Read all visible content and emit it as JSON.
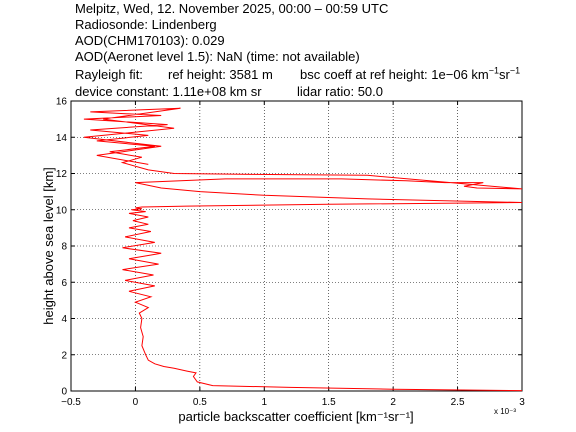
{
  "header": {
    "line1": "Melpitz, Wed, 12. November 2025, 00:00 – 00:59 UTC",
    "line2": "Radiosonde: Lindenberg",
    "line3": "AOD(CHM170103): 0.029",
    "line4": "AOD(Aeronet level 1.5): NaN   (time: not available)",
    "rayleigh_label": "Rayleigh fit:",
    "ref_height": "ref height: 3581 m",
    "bsc_coeff_prefix": "bsc coeff at ref height: 1e−06 km",
    "device_constant": "device constant: 1.11e+08 km sr",
    "lidar_ratio": "lidar ratio: 50.0"
  },
  "chart_data": {
    "type": "line",
    "xlabel": "particle backscatter coefficient [km⁻¹sr⁻¹]",
    "ylabel": "height above sea level [km]",
    "x_exponent_label": "x 10⁻³",
    "xlim": [
      -0.5,
      3
    ],
    "ylim": [
      0,
      16
    ],
    "x_ticks": [
      "−0.5",
      "0",
      "0.5",
      "1",
      "1.5",
      "2",
      "2.5",
      "3"
    ],
    "y_ticks": [
      "0",
      "2",
      "4",
      "6",
      "8",
      "10",
      "12",
      "14",
      "16"
    ],
    "grid": true,
    "line_color": "#ff0000",
    "series": [
      {
        "x": [
          3.0,
          2.0,
          1.2,
          0.6,
          0.48,
          0.45,
          0.47,
          0.4,
          0.3,
          0.22,
          0.15,
          0.1,
          0.08,
          0.05,
          0.06,
          0.04,
          0.05,
          0.03,
          0.1,
          0.0,
          0.12,
          -0.05,
          0.15,
          -0.08,
          0.14,
          -0.1,
          0.18,
          -0.05,
          0.2,
          -0.1,
          0.15,
          -0.08,
          0.12,
          -0.05,
          0.1,
          -0.02,
          0.1,
          -0.05,
          0.08,
          -0.03,
          0.05,
          0.0,
          0.05,
          0.4,
          1.5,
          3.0,
          1.8,
          1.0,
          0.5,
          0.2,
          0.0,
          0.7,
          1.6,
          2.1,
          2.4,
          2.7,
          2.55,
          2.65,
          3.0,
          1.8,
          0.9,
          0.3,
          0.1,
          -0.1,
          0.05,
          -0.2,
          0.15,
          -0.3,
          0.1,
          -0.35,
          0.25,
          -0.4,
          0.2,
          -0.35,
          0.35,
          -0.25,
          0.3,
          -0.4,
          0.2,
          -0.3,
          0.1
        ],
        "y": [
          0.02,
          0.1,
          0.2,
          0.3,
          0.5,
          0.8,
          1.0,
          1.1,
          1.25,
          1.35,
          1.5,
          1.7,
          2.0,
          2.5,
          3.0,
          3.5,
          4.0,
          4.3,
          4.6,
          4.9,
          5.2,
          5.5,
          5.8,
          6.1,
          6.4,
          6.7,
          7.0,
          7.3,
          7.6,
          7.9,
          8.2,
          8.5,
          8.8,
          9.0,
          9.2,
          9.4,
          9.6,
          9.8,
          9.9,
          10.0,
          10.05,
          10.1,
          10.15,
          10.2,
          10.3,
          10.4,
          10.6,
          10.8,
          11.0,
          11.2,
          11.5,
          11.7,
          11.7,
          11.6,
          11.5,
          11.5,
          11.3,
          11.2,
          11.15,
          11.9,
          11.95,
          12.0,
          12.2,
          12.6,
          12.9,
          13.2,
          13.5,
          13.8,
          14.1,
          14.4,
          14.7,
          15.0,
          15.2,
          15.4,
          15.6,
          15.0,
          14.5,
          14.0,
          13.5,
          13.0,
          12.5
        ]
      }
    ]
  }
}
